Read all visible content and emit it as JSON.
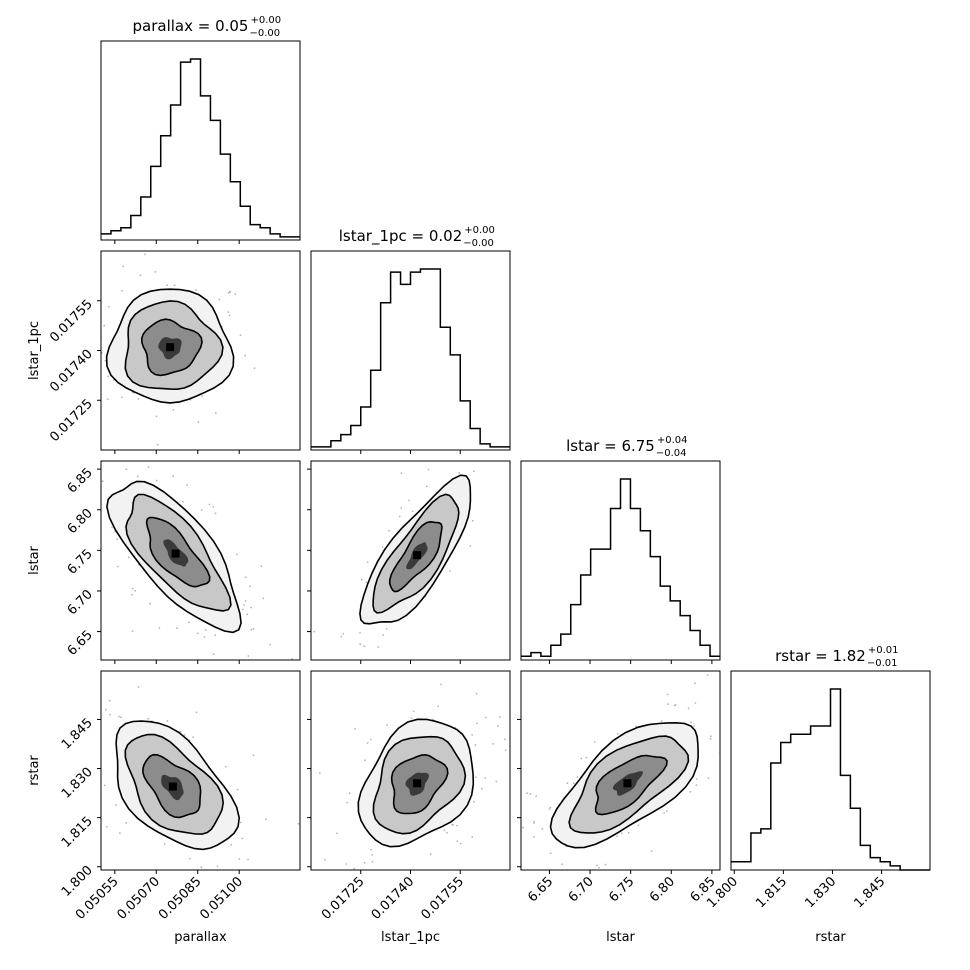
{
  "chart_data": {
    "type": "corner",
    "parameters": [
      "parallax",
      "lstar_1pc",
      "lstar",
      "rstar"
    ],
    "titles": [
      {
        "param": "parallax",
        "text": "parallax = 0.05",
        "upper": "+0.00",
        "lower": "−0.00"
      },
      {
        "param": "lstar_1pc",
        "text": "lstar_1pc = 0.02",
        "upper": "+0.00",
        "lower": "−0.00"
      },
      {
        "param": "lstar",
        "text": "lstar = 6.75",
        "upper": "+0.04",
        "lower": "−0.04"
      },
      {
        "param": "rstar",
        "text": "rstar = 1.82",
        "upper": "+0.01",
        "lower": "−0.01"
      }
    ],
    "axes": {
      "parallax": {
        "range": [
          0.0505,
          0.05122
        ],
        "ticks": [
          0.05055,
          0.0507,
          0.05085,
          0.051
        ],
        "tick_labels": [
          "0.05055",
          "0.05070",
          "0.05085",
          "0.05100"
        ],
        "label": "parallax"
      },
      "lstar_1pc": {
        "range": [
          0.0171,
          0.0177
        ],
        "ticks": [
          0.01725,
          0.0174,
          0.01755
        ],
        "tick_labels": [
          "0.01725",
          "0.01740",
          "0.01755"
        ],
        "label": "lstar_1pc"
      },
      "lstar": {
        "range": [
          6.615,
          6.86
        ],
        "ticks": [
          6.65,
          6.7,
          6.75,
          6.8,
          6.85
        ],
        "tick_labels": [
          "6.65",
          "6.70",
          "6.75",
          "6.80",
          "6.85"
        ],
        "label": "lstar"
      },
      "rstar": {
        "range": [
          1.799,
          1.8598
        ],
        "ticks": [
          1.8,
          1.815,
          1.83,
          1.845
        ],
        "tick_labels": [
          "1.800",
          "1.815",
          "1.830",
          "1.845"
        ],
        "label": "rstar"
      }
    },
    "histograms": [
      {
        "param": "parallax",
        "counts": [
          2,
          3,
          4,
          8,
          14,
          24,
          34,
          44,
          58,
          59,
          47,
          39,
          28,
          19,
          11,
          5,
          4,
          2,
          1,
          1
        ]
      },
      {
        "param": "lstar_1pc",
        "counts": [
          1,
          1,
          3,
          5,
          8,
          14,
          26,
          48,
          58,
          54,
          58,
          59,
          59,
          40,
          31,
          16,
          7,
          2,
          1,
          1
        ]
      },
      {
        "param": "lstar",
        "counts": [
          1,
          2,
          1,
          4,
          7,
          15,
          23,
          30,
          30,
          41,
          49,
          41,
          35,
          28,
          20,
          16,
          12,
          8,
          4,
          1
        ]
      },
      {
        "param": "rstar",
        "counts": [
          2,
          2,
          9,
          10,
          26,
          31,
          33,
          33,
          35,
          35,
          44,
          23,
          15,
          6,
          3,
          2,
          1,
          0,
          0,
          0
        ]
      }
    ],
    "pairs": [
      {
        "x": "parallax",
        "y": "lstar_1pc",
        "mean": [
          0.05075,
          0.01741
        ],
        "sd": [
          9e-05,
          7e-05
        ],
        "corr": 0.0
      },
      {
        "x": "parallax",
        "y": "lstar",
        "mean": [
          0.05077,
          6.746
        ],
        "sd": [
          9.5e-05,
          0.037
        ],
        "corr": -0.72
      },
      {
        "x": "lstar_1pc",
        "y": "lstar",
        "mean": [
          0.01742,
          6.744
        ],
        "sd": [
          6.8e-05,
          0.037
        ],
        "corr": 0.78
      },
      {
        "x": "parallax",
        "y": "rstar",
        "mean": [
          0.05076,
          1.8245
        ],
        "sd": [
          9e-05,
          0.008
        ],
        "corr": -0.5
      },
      {
        "x": "lstar_1pc",
        "y": "rstar",
        "mean": [
          0.01742,
          1.8255
        ],
        "sd": [
          7e-05,
          0.0078
        ],
        "corr": 0.3
      },
      {
        "x": "lstar",
        "y": "rstar",
        "mean": [
          6.746,
          1.8255
        ],
        "sd": [
          0.037,
          0.0078
        ],
        "corr": 0.65
      }
    ],
    "grid": false,
    "legend": false
  }
}
